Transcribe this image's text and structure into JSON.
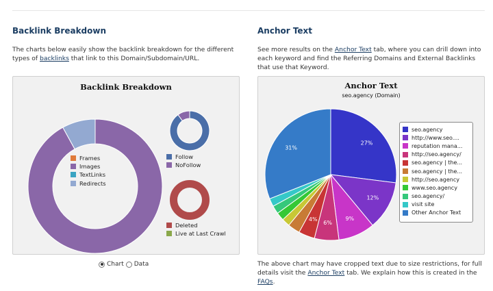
{
  "left": {
    "heading": "Backlink Breakdown",
    "desc_pre": "The charts below easily show the backlink breakdown for the different types of ",
    "desc_link": "backlinks",
    "desc_post": " that link to this Domain/Subdomain/URL.",
    "panel_title": "Backlink Breakdown",
    "view_options": {
      "chart": "Chart",
      "data": "Data",
      "selected": "chart"
    }
  },
  "right": {
    "heading": "Anchor Text",
    "desc_pre": "See more results on the ",
    "desc_link": "Anchor Text",
    "desc_post": " tab, where you can drill down into each keyword and find the Referring Domains and External Backlinks that use that Keyword.",
    "panel_title": "Anchor Text",
    "panel_subtitle": "seo.agency (Domain)",
    "foot_pre": "The above chart may have cropped text due to size restrictions, for full details visit the ",
    "foot_link": "Anchor Text",
    "foot_mid": " tab. We explain how this is created in the ",
    "foot_link2": "FAQs",
    "foot_post": "."
  },
  "chart_data": [
    {
      "type": "pie",
      "style": "donut",
      "title": "Backlink Breakdown",
      "legend_position": "center",
      "categories": [
        "Frames",
        "Images",
        "TextLinks",
        "Redirects"
      ],
      "values": [
        0,
        92,
        0,
        8
      ],
      "colors": [
        "#e07b3a",
        "#8a67a8",
        "#3aa4c2",
        "#93a9d1"
      ]
    },
    {
      "type": "pie",
      "style": "donut",
      "legend_position": "bottom",
      "categories": [
        "Follow",
        "NoFollow"
      ],
      "values": [
        90,
        10
      ],
      "colors": [
        "#4a6ea8",
        "#8a67a8"
      ]
    },
    {
      "type": "pie",
      "style": "donut",
      "legend_position": "bottom",
      "categories": [
        "Deleted",
        "Live at Last Crawl"
      ],
      "values": [
        100,
        0
      ],
      "colors": [
        "#b04a4a",
        "#8aa84a"
      ]
    },
    {
      "type": "pie",
      "title": "Anchor Text",
      "subtitle": "seo.agency (Domain)",
      "legend_position": "right",
      "categories": [
        "seo.agency",
        "http://www.seo....",
        "reputation mana...",
        "http://seo.agency/",
        "seo.agency | the...",
        "seo.agency | the...",
        "http://seo.agency",
        "www.seo.agency",
        "seo.agency/",
        "visit site",
        "Other Anchor Text"
      ],
      "values": [
        27,
        12,
        9,
        6,
        4,
        3,
        2,
        2,
        2,
        2,
        31
      ],
      "data_labels": [
        "27%",
        "12%",
        "9%",
        "6%",
        "4%",
        "",
        "",
        "",
        "",
        "",
        "31%"
      ],
      "colors": [
        "#3535c8",
        "#7b35c8",
        "#c835c8",
        "#c8357b",
        "#c83535",
        "#c87b35",
        "#c8c835",
        "#35c835",
        "#35c87b",
        "#35c8c8",
        "#357bc8"
      ]
    }
  ]
}
